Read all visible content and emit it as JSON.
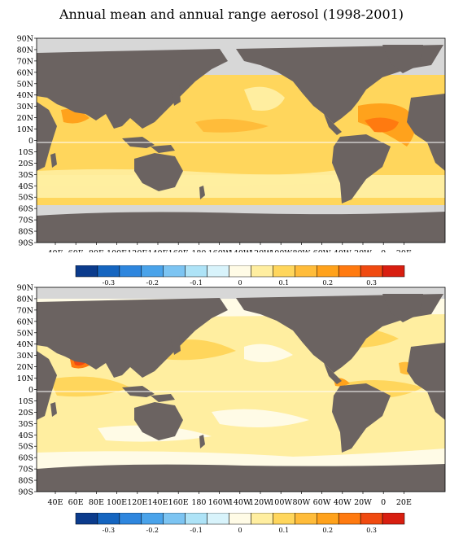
{
  "title": "Annual mean and annual range aerosol (1998-2001)",
  "lat_labels": [
    "90N",
    "80N",
    "70N",
    "60N",
    "50N",
    "40N",
    "30N",
    "20N",
    "10N",
    "0",
    "10S",
    "20S",
    "30S",
    "40S",
    "50S",
    "60S",
    "70S",
    "80S",
    "90S"
  ],
  "lon_labels": [
    "40E",
    "60E",
    "80E",
    "100E",
    "120E",
    "140E",
    "160E",
    "180",
    "160W",
    "140W",
    "120W",
    "100W",
    "80W",
    "60W",
    "40W",
    "20W",
    "0",
    "20E"
  ],
  "colorbar": {
    "colors": [
      "#0b3b8c",
      "#1565c0",
      "#2e86de",
      "#4aa3ea",
      "#7cc4f2",
      "#aee3f7",
      "#d8f3fb",
      "#fffbe6",
      "#ffeea0",
      "#ffd65c",
      "#ffbc3a",
      "#ffa21c",
      "#ff7a10",
      "#f04a10",
      "#d81e10"
    ],
    "labels": [
      "-0.3",
      "-0.2",
      "-0.1",
      "0",
      "0.1",
      "0.2",
      "0.3"
    ]
  },
  "colors": {
    "land": "#6b6361",
    "ice": "#d7d7d7",
    "equator": "#ffffff"
  },
  "panels": [
    {
      "name": "annual-mean"
    },
    {
      "name": "annual-range"
    }
  ]
}
